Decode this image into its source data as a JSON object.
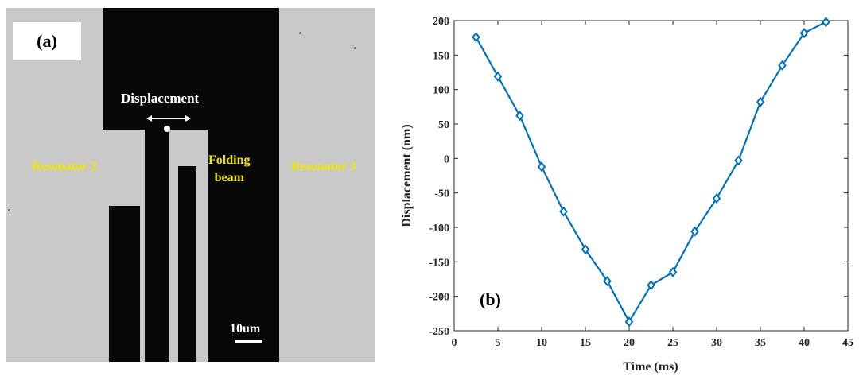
{
  "panel_a": {
    "panel_label": "(a)",
    "displacement_label": "Displacement",
    "resonator_left": "Resonator 2",
    "folding_beam": [
      "Folding",
      "beam"
    ],
    "resonator_right": "Resonator 3",
    "scale_bar_label": "10um"
  },
  "panel_b_label": "(b)",
  "chart_data": {
    "type": "line",
    "xlabel": "Time (ms)",
    "ylabel": "Displacement (nm)",
    "xlim": [
      0,
      45
    ],
    "ylim": [
      -250,
      200
    ],
    "xticks": [
      0,
      5,
      10,
      15,
      20,
      25,
      30,
      35,
      40,
      45
    ],
    "yticks": [
      -250,
      -200,
      -150,
      -100,
      -50,
      0,
      50,
      100,
      150,
      200
    ],
    "grid": false,
    "series": [
      {
        "marker": "diamond",
        "color": "#0072bd",
        "x": [
          2.5,
          5,
          7.5,
          10,
          12.5,
          15,
          17.5,
          20,
          22.5,
          25,
          27.5,
          30,
          32.5,
          35,
          37.5,
          40,
          42.5
        ],
        "y": [
          176,
          119,
          62,
          -12,
          -77,
          -132,
          -178,
          -237,
          -184,
          -165,
          -106,
          -58,
          -3,
          82,
          135,
          182,
          198
        ]
      }
    ]
  }
}
